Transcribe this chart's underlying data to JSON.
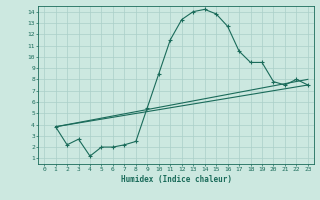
{
  "xlabel": "Humidex (Indice chaleur)",
  "bg_color": "#cce8e0",
  "line_color": "#1a6b5a",
  "grid_color": "#aacfc8",
  "xlim": [
    -0.5,
    23.5
  ],
  "ylim": [
    0.5,
    14.5
  ],
  "xticks": [
    0,
    1,
    2,
    3,
    4,
    5,
    6,
    7,
    8,
    9,
    10,
    11,
    12,
    13,
    14,
    15,
    16,
    17,
    18,
    19,
    20,
    21,
    22,
    23
  ],
  "yticks": [
    1,
    2,
    3,
    4,
    5,
    6,
    7,
    8,
    9,
    10,
    11,
    12,
    13,
    14
  ],
  "line1_x": [
    1,
    2,
    3,
    4,
    5,
    6,
    7,
    8,
    9,
    10,
    11,
    12,
    13,
    14,
    15,
    16,
    17,
    18,
    19,
    20,
    21,
    22,
    23
  ],
  "line1_y": [
    3.8,
    2.2,
    2.7,
    1.2,
    2.0,
    2.0,
    2.2,
    2.5,
    5.5,
    8.5,
    11.5,
    13.3,
    14.0,
    14.2,
    13.8,
    12.7,
    10.5,
    9.5,
    9.5,
    7.8,
    7.5,
    8.0,
    7.5
  ],
  "line2_x": [
    1,
    23
  ],
  "line2_y": [
    3.8,
    7.5
  ],
  "line3_x": [
    1,
    23
  ],
  "line3_y": [
    3.8,
    8.0
  ],
  "figsize": [
    3.2,
    2.0
  ],
  "dpi": 100
}
